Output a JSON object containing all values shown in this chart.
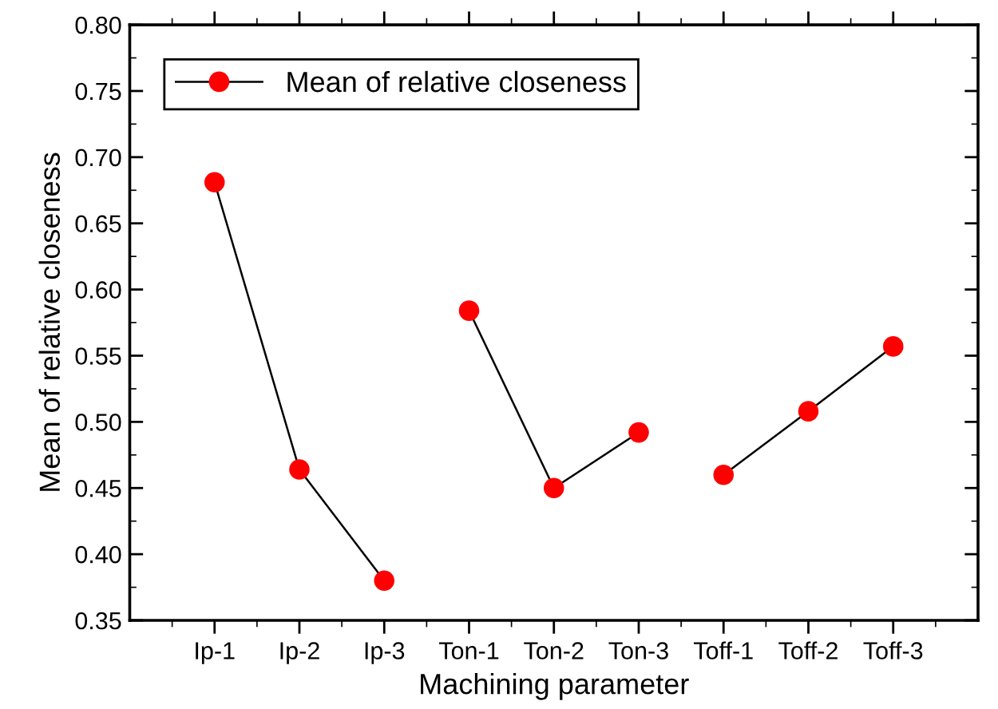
{
  "chart_data": {
    "type": "line",
    "xlabel": "Machining parameter",
    "ylabel": "Mean of relative closeness",
    "categories": [
      "Ip-1",
      "Ip-2",
      "Ip-3",
      "Ton-1",
      "Ton-2",
      "Ton-3",
      "Toff-1",
      "Toff-2",
      "Toff-3"
    ],
    "series": [
      {
        "name": "Mean of relative closeness",
        "color": "#ff0000",
        "values": [
          0.681,
          0.464,
          0.38,
          null,
          null,
          null,
          null,
          null,
          null
        ]
      },
      {
        "color": "#ff0000",
        "values": [
          null,
          null,
          null,
          0.584,
          0.45,
          0.492,
          null,
          null,
          null
        ]
      },
      {
        "color": "#ff0000",
        "values": [
          null,
          null,
          null,
          null,
          null,
          null,
          0.46,
          0.508,
          0.557
        ]
      }
    ],
    "ylim": [
      0.35,
      0.8
    ],
    "yticks": [
      0.35,
      {
        "value": 0.4,
        "label": "0.40"
      },
      0.45,
      {
        "value": 0.5,
        "label": "0.50"
      },
      0.55,
      {
        "value": 0.6,
        "label": "0.60"
      },
      0.65,
      {
        "value": 0.7,
        "label": "0.70"
      },
      0.75,
      {
        "value": 0.8,
        "label": "0.80"
      }
    ],
    "marker": "circle",
    "line_style": "solid",
    "legend": "top left",
    "grid": false
  }
}
